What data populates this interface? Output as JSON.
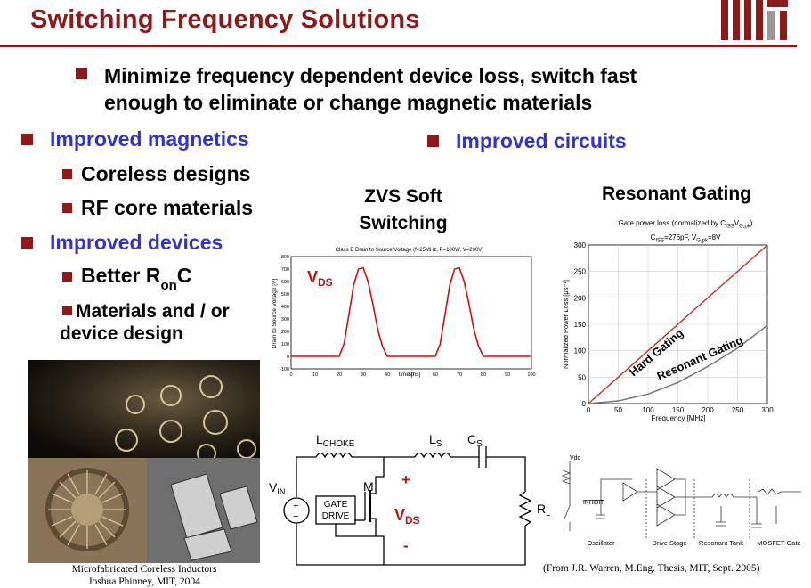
{
  "title": "Switching Frequency Solutions",
  "main_bullet": [
    "Minimize frequency dependent device loss, switch fast",
    "enough to eliminate or change magnetic materials"
  ],
  "left": {
    "improved_magnetics": "Improved magnetics",
    "coreless": "Coreless designs",
    "rf_core": "RF core materials",
    "improved_devices": "Improved devices",
    "better_ronc": {
      "pre": "Better R",
      "sub": "on",
      "post": "C"
    },
    "materials_1": "Materials and / or",
    "materials_2": "device design"
  },
  "right": {
    "improved_circuits": "Improved circuits"
  },
  "zvs": {
    "heading_1": "ZVS Soft",
    "heading_2": "Switching",
    "plot_title": "Class E Drain to Source Voltage (f=25MHz, P=100W, V=200V)",
    "label_v": "V",
    "label_sub": "DS",
    "ylabel": "Drain to Source Voltage [V]",
    "xlabel": "time [ns]",
    "x_ticks": [
      "0",
      "10",
      "20",
      "30",
      "40",
      "50",
      "60",
      "70",
      "80",
      "90",
      "100"
    ],
    "y_ticks": [
      "800",
      "700",
      "600",
      "500",
      "400",
      "300",
      "200",
      "100",
      "0",
      "-100"
    ]
  },
  "resonant": {
    "heading": "Resonant Gating",
    "sub_1": "Gate power loss (normalized by C",
    "sub_1_a": "ISS",
    "sub_1_b": "V",
    "sub_1_c": "G,pk",
    "sub_2": "C",
    "sub_2_a": "ISS",
    "sub_2_b": "=276pF, V",
    "sub_2_c": "G,pk",
    "sub_2_d": "=8V",
    "ylabel": "Normalized Power Loss [μs⁻¹]",
    "xlabel": "Frequency [MHz]",
    "x_ticks": [
      "0",
      "50",
      "100",
      "150",
      "200",
      "250",
      "300"
    ],
    "y_ticks": [
      "300",
      "250",
      "200",
      "150",
      "100",
      "50",
      "0"
    ],
    "hard": "Hard Gating",
    "resonant": "Resonant Gating"
  },
  "chart_data": [
    {
      "type": "line",
      "title": "Class E Drain to Source Voltage (f=25MHz, P=100W, V=200V)",
      "xlabel": "time [ns]",
      "ylabel": "Drain to Source Voltage [V]",
      "xlim": [
        0,
        100
      ],
      "ylim": [
        -100,
        800
      ],
      "series": [
        {
          "name": "VDS",
          "x": [
            0,
            20,
            22,
            24,
            26,
            28,
            30,
            32,
            34,
            36,
            38,
            40,
            42,
            60,
            62,
            64,
            66,
            68,
            70,
            72,
            74,
            76,
            78,
            80,
            82,
            100
          ],
          "y": [
            0,
            0,
            100,
            330,
            570,
            700,
            710,
            600,
            420,
            220,
            80,
            0,
            0,
            0,
            100,
            330,
            570,
            700,
            710,
            600,
            420,
            220,
            80,
            0,
            0,
            0
          ]
        }
      ]
    },
    {
      "type": "line",
      "title": "Gate power loss",
      "xlabel": "Frequency [MHz]",
      "ylabel": "Normalized Power Loss [μs⁻¹]",
      "xlim": [
        0,
        300
      ],
      "ylim": [
        0,
        300
      ],
      "series": [
        {
          "name": "Hard Gating",
          "x": [
            0,
            300
          ],
          "y": [
            0,
            300
          ]
        },
        {
          "name": "Resonant Gating",
          "x": [
            0,
            50,
            100,
            150,
            200,
            250,
            300
          ],
          "y": [
            0,
            5,
            18,
            40,
            70,
            105,
            148
          ]
        }
      ]
    }
  ],
  "circuit": {
    "lchoke": "L",
    "lchoke_sub": "CHOKE",
    "ls": "L",
    "ls_sub": "S",
    "cs": "C",
    "cs_sub": "S",
    "vin": "V",
    "vin_sub": "IN",
    "m": "M",
    "gate_1": "GATE",
    "gate_2": "DRIVE",
    "plus": "+",
    "minus": "-",
    "vds": "V",
    "vds_sub": "DS",
    "rl": "R",
    "rl_sub": "L"
  },
  "gate_schematic": {
    "labels": [
      "Oscillator",
      "Drive Stage",
      "Resonant Tank",
      "MOSFET Gate"
    ],
    "inhibit": "INHIBIT",
    "vdd": "Vdd"
  },
  "photo_caption_1": "Microfabricated Coreless Inductors",
  "photo_caption_2": "Joshua Phinney, MIT, 2004",
  "citation": "(From J.R. Warren, M.Eng. Thesis, MIT, Sept. 2005)",
  "colors": {
    "accent": "#8b1a1a",
    "blue_heading": "#3333cc",
    "hard_line": "#c0392b",
    "resonant_line": "#777777",
    "vds_line": "#cc1111"
  }
}
